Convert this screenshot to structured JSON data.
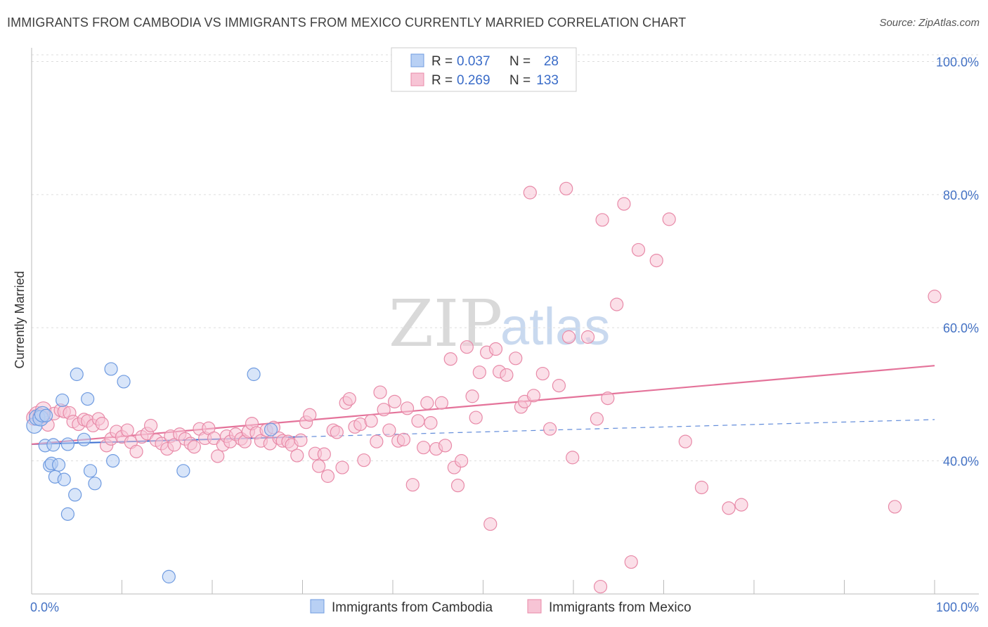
{
  "title": "IMMIGRANTS FROM CAMBODIA VS IMMIGRANTS FROM MEXICO CURRENTLY MARRIED CORRELATION CHART",
  "source": "Source: ZipAtlas.com",
  "watermark": {
    "zip": "ZIP",
    "atlas": "atlas"
  },
  "colors": {
    "cambodia_fill": "#b8d0f4",
    "cambodia_stroke": "#6f9be0",
    "cambodia_line": "#3b6fd1",
    "mexico_fill": "#f7c4d5",
    "mexico_stroke": "#e88aa8",
    "mexico_line": "#e4739a",
    "grid": "#dddddd",
    "tick_text": "#4472c4"
  },
  "legend": {
    "rows": [
      {
        "r_label": "R =",
        "r_value": "0.037",
        "n_label": "N =",
        "n_value": "28"
      },
      {
        "r_label": "R =",
        "r_value": "0.269",
        "n_label": "N =",
        "n_value": "133"
      }
    ]
  },
  "chart_data": {
    "type": "scatter",
    "title": "IMMIGRANTS FROM CAMBODIA VS IMMIGRANTS FROM MEXICO CURRENTLY MARRIED CORRELATION CHART",
    "xlabel": "",
    "ylabel": "Currently Married",
    "xlim": [
      0,
      100
    ],
    "ylim": [
      20,
      101
    ],
    "x_tick_labels": {
      "min": "0.0%",
      "max": "100.0%"
    },
    "y_ticks": [
      {
        "value": 40,
        "label": "40.0%"
      },
      {
        "value": 60,
        "label": "60.0%"
      },
      {
        "value": 80,
        "label": "80.0%"
      },
      {
        "value": 100,
        "label": "100.0%"
      }
    ],
    "grid": true,
    "legend_position": "bottom",
    "series": [
      {
        "name": "Immigrants from Cambodia",
        "r": 0.037,
        "n": 28,
        "trend": {
          "x0": 0,
          "y0": 42.5,
          "x1": 100,
          "y1": 46.2,
          "solid_until": 30
        },
        "points": [
          [
            0.3,
            45.3
          ],
          [
            0.6,
            46.5
          ],
          [
            1.0,
            46.4
          ],
          [
            1.2,
            47.0
          ],
          [
            1.6,
            46.8
          ],
          [
            1.5,
            42.3
          ],
          [
            2.0,
            39.3
          ],
          [
            2.2,
            39.6
          ],
          [
            2.4,
            42.4
          ],
          [
            2.6,
            37.6
          ],
          [
            3.0,
            39.4
          ],
          [
            3.4,
            49.1
          ],
          [
            3.6,
            37.2
          ],
          [
            4.0,
            42.5
          ],
          [
            4.0,
            32.0
          ],
          [
            4.8,
            34.9
          ],
          [
            5.0,
            53.0
          ],
          [
            5.8,
            43.2
          ],
          [
            6.2,
            49.3
          ],
          [
            6.5,
            38.5
          ],
          [
            7.0,
            36.6
          ],
          [
            8.8,
            53.8
          ],
          [
            9.0,
            40.0
          ],
          [
            10.2,
            51.9
          ],
          [
            15.2,
            22.6
          ],
          [
            16.8,
            38.5
          ],
          [
            24.6,
            53.0
          ],
          [
            26.5,
            44.7
          ]
        ]
      },
      {
        "name": "Immigrants from Mexico",
        "r": 0.269,
        "n": 133,
        "trend": {
          "x0": 0,
          "y0": 42.5,
          "x1": 100,
          "y1": 54.3
        },
        "points": [
          [
            0.3,
            46.5
          ],
          [
            0.6,
            47.0
          ],
          [
            1.0,
            46.7
          ],
          [
            1.3,
            47.7
          ],
          [
            1.8,
            45.4
          ],
          [
            2.5,
            47.1
          ],
          [
            3.2,
            47.6
          ],
          [
            3.6,
            47.4
          ],
          [
            4.2,
            47.2
          ],
          [
            4.6,
            45.9
          ],
          [
            5.2,
            45.5
          ],
          [
            5.8,
            46.2
          ],
          [
            6.2,
            46.0
          ],
          [
            6.8,
            45.3
          ],
          [
            7.4,
            46.3
          ],
          [
            7.8,
            45.6
          ],
          [
            8.3,
            42.3
          ],
          [
            8.8,
            43.3
          ],
          [
            9.4,
            44.4
          ],
          [
            10.0,
            43.6
          ],
          [
            10.6,
            44.6
          ],
          [
            11.0,
            42.8
          ],
          [
            11.6,
            41.4
          ],
          [
            12.2,
            43.6
          ],
          [
            12.8,
            44.1
          ],
          [
            13.2,
            45.3
          ],
          [
            13.8,
            43.1
          ],
          [
            14.4,
            42.6
          ],
          [
            15.0,
            41.8
          ],
          [
            15.4,
            43.7
          ],
          [
            15.8,
            42.4
          ],
          [
            16.4,
            44.0
          ],
          [
            17.0,
            43.3
          ],
          [
            17.6,
            42.6
          ],
          [
            18.0,
            42.1
          ],
          [
            18.6,
            44.8
          ],
          [
            19.2,
            43.4
          ],
          [
            19.6,
            44.9
          ],
          [
            20.2,
            43.4
          ],
          [
            20.6,
            40.7
          ],
          [
            21.2,
            42.4
          ],
          [
            21.6,
            43.7
          ],
          [
            22.0,
            42.9
          ],
          [
            22.6,
            44.0
          ],
          [
            23.2,
            43.3
          ],
          [
            23.6,
            42.9
          ],
          [
            24.0,
            44.4
          ],
          [
            24.4,
            45.6
          ],
          [
            24.9,
            44.2
          ],
          [
            25.4,
            43.0
          ],
          [
            26.0,
            44.6
          ],
          [
            26.4,
            42.6
          ],
          [
            26.8,
            45.0
          ],
          [
            27.4,
            43.4
          ],
          [
            27.8,
            43.0
          ],
          [
            28.4,
            42.9
          ],
          [
            28.8,
            42.4
          ],
          [
            29.4,
            40.8
          ],
          [
            29.8,
            43.1
          ],
          [
            30.4,
            45.8
          ],
          [
            30.8,
            46.9
          ],
          [
            31.4,
            41.1
          ],
          [
            31.8,
            39.2
          ],
          [
            32.4,
            41.0
          ],
          [
            32.8,
            37.7
          ],
          [
            33.4,
            44.6
          ],
          [
            33.8,
            44.3
          ],
          [
            34.4,
            39.0
          ],
          [
            34.8,
            48.7
          ],
          [
            35.2,
            49.3
          ],
          [
            35.8,
            45.1
          ],
          [
            36.4,
            45.5
          ],
          [
            36.8,
            40.1
          ],
          [
            37.6,
            46.0
          ],
          [
            38.2,
            42.9
          ],
          [
            38.6,
            50.3
          ],
          [
            39.0,
            47.7
          ],
          [
            39.6,
            44.6
          ],
          [
            40.2,
            48.9
          ],
          [
            40.6,
            43.0
          ],
          [
            41.2,
            43.2
          ],
          [
            41.6,
            47.9
          ],
          [
            42.2,
            36.4
          ],
          [
            42.8,
            46.0
          ],
          [
            43.4,
            42.0
          ],
          [
            43.8,
            48.7
          ],
          [
            44.2,
            45.7
          ],
          [
            44.8,
            41.8
          ],
          [
            45.4,
            48.7
          ],
          [
            45.8,
            42.3
          ],
          [
            46.4,
            55.3
          ],
          [
            46.8,
            39.0
          ],
          [
            47.2,
            36.3
          ],
          [
            47.6,
            40.0
          ],
          [
            48.2,
            57.1
          ],
          [
            48.8,
            49.7
          ],
          [
            49.2,
            46.5
          ],
          [
            49.6,
            53.3
          ],
          [
            50.4,
            56.3
          ],
          [
            50.8,
            30.5
          ],
          [
            51.4,
            56.8
          ],
          [
            51.8,
            53.4
          ],
          [
            52.6,
            52.9
          ],
          [
            53.6,
            55.4
          ],
          [
            54.2,
            48.1
          ],
          [
            54.6,
            48.9
          ],
          [
            55.2,
            80.3
          ],
          [
            55.6,
            49.8
          ],
          [
            56.6,
            53.1
          ],
          [
            57.4,
            44.8
          ],
          [
            58.4,
            51.3
          ],
          [
            59.2,
            80.9
          ],
          [
            59.5,
            58.6
          ],
          [
            59.9,
            40.5
          ],
          [
            61.6,
            58.6
          ],
          [
            62.6,
            46.3
          ],
          [
            63.2,
            76.2
          ],
          [
            63.8,
            49.4
          ],
          [
            64.8,
            63.5
          ],
          [
            65.6,
            78.6
          ],
          [
            66.4,
            24.8
          ],
          [
            67.2,
            71.7
          ],
          [
            69.2,
            70.1
          ],
          [
            70.6,
            76.3
          ],
          [
            72.4,
            42.9
          ],
          [
            74.2,
            36.0
          ],
          [
            77.2,
            32.9
          ],
          [
            78.6,
            33.4
          ],
          [
            95.6,
            33.1
          ],
          [
            100.0,
            64.7
          ],
          [
            63.0,
            21.1
          ]
        ]
      }
    ]
  },
  "bottom_legend": {
    "items": [
      {
        "label": "Immigrants from Cambodia"
      },
      {
        "label": "Immigrants from Mexico"
      }
    ]
  }
}
